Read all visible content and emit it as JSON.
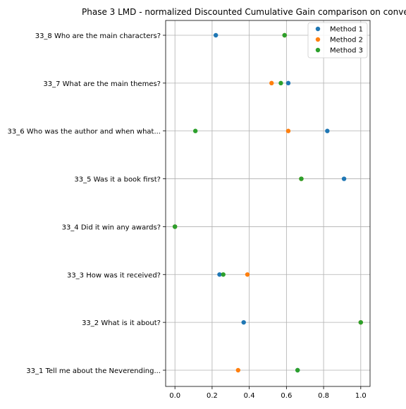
{
  "chart_data": {
    "type": "scatter",
    "title": "Phase 3 LMD - normalized Discounted Cumulative Gain comparison on conve",
    "xlabel": "",
    "ylabel": "",
    "xlim": [
      -0.05,
      1.05
    ],
    "x_ticks": [
      "0.0",
      "0.2",
      "0.4",
      "0.6",
      "0.8",
      "1.0"
    ],
    "x_tick_values": [
      0.0,
      0.2,
      0.4,
      0.6,
      0.8,
      1.0
    ],
    "categories": [
      "33_1 Tell me about the Neverending...",
      "33_2 What is it about?",
      "33_3 How was it received?",
      "33_4 Did it win any awards?",
      "33_5 Was it a book first?",
      "33_6 Who was the author and when what...",
      "33_7 What are the main themes?",
      "33_8 Who are the main characters?"
    ],
    "series": [
      {
        "name": "Method 1",
        "color": "#1f77b4",
        "values": [
          0.66,
          0.37,
          0.24,
          0.0,
          0.91,
          0.82,
          0.61,
          0.22
        ]
      },
      {
        "name": "Method 2",
        "color": "#ff7f0e",
        "values": [
          0.34,
          1.0,
          0.39,
          0.0,
          0.68,
          0.61,
          0.52,
          0.59
        ]
      },
      {
        "name": "Method 3",
        "color": "#2ca02c",
        "values": [
          0.66,
          1.0,
          0.26,
          0.0,
          0.68,
          0.11,
          0.57,
          0.59
        ]
      }
    ],
    "grid": true,
    "legend_position": "top-right"
  }
}
